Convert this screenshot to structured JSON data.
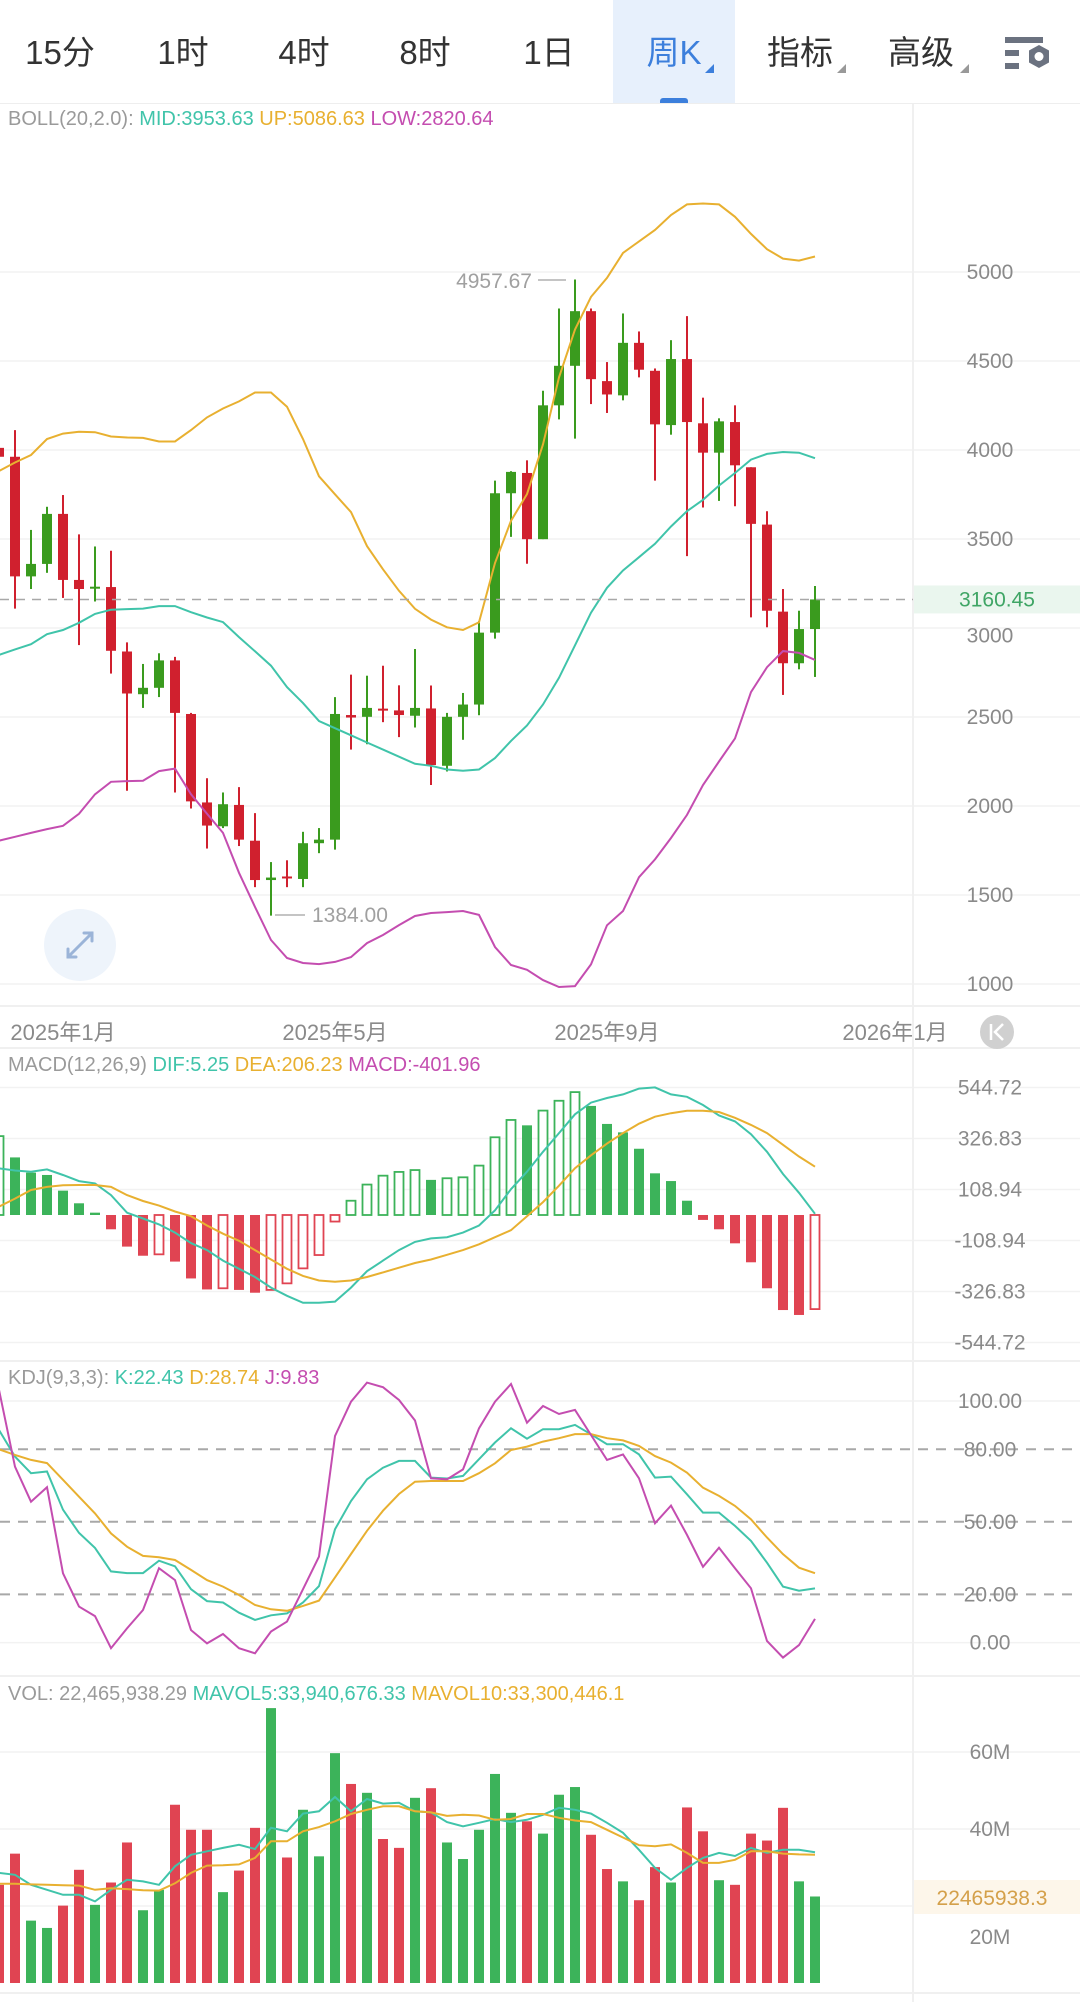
{
  "tabs": [
    {
      "label": "15分",
      "active": false,
      "dropdown": false
    },
    {
      "label": "1时",
      "active": false,
      "dropdown": false
    },
    {
      "label": "4时",
      "active": false,
      "dropdown": false
    },
    {
      "label": "8时",
      "active": false,
      "dropdown": false
    },
    {
      "label": "1日",
      "active": false,
      "dropdown": false
    },
    {
      "label": "周K",
      "active": true,
      "dropdown": true
    },
    {
      "label": "指标",
      "active": false,
      "dropdown": true
    },
    {
      "label": "高级",
      "active": false,
      "dropdown": true
    }
  ],
  "settings_icon": "chart-settings-icon",
  "colors": {
    "up": "#3a9b1e",
    "down": "#d0202e",
    "vol_up": "#3cb35a",
    "vol_down": "#e04452",
    "mid": "#40c4aa",
    "upper": "#e8b030",
    "lower": "#c44db0",
    "accent": "#3c7fdc"
  },
  "legends": {
    "boll": {
      "name": "BOLL(20,2.0):",
      "mid": "MID:3953.63",
      "up": "UP:5086.63",
      "low": "LOW:2820.64"
    },
    "macd": {
      "name": "MACD(12,26,9)",
      "dif": "DIF:5.25",
      "dea": "DEA:206.23",
      "macd": "MACD:-401.96"
    },
    "kdj": {
      "name": "KDJ(9,3,3):",
      "k": "K:22.43",
      "d": "D:28.74",
      "j": "J:9.83"
    },
    "vol": {
      "name": "VOL: 22,465,938.29",
      "ma5": "MAVOL5:33,940,676.33",
      "ma10": "MAVOL10:33,300,446.1"
    }
  },
  "price_marks": {
    "high_label": "4957.67",
    "low_label": "1384.00",
    "current_label": "3160.45",
    "current": 3160.45
  },
  "volume_tag": "22465938.3",
  "chart_data": {
    "type": "candlestick",
    "x_ticks": [
      {
        "label": "2025年1月",
        "index": 4
      },
      {
        "label": "2025年5月",
        "index": 21
      },
      {
        "label": "2025年9月",
        "index": 38
      },
      {
        "label": "2026年1月",
        "index": 56
      }
    ],
    "price_axis": {
      "ticks": [
        "5000",
        "4500",
        "4000",
        "3500",
        "3000",
        "2500",
        "2000",
        "1500",
        "1000"
      ]
    },
    "candles": [
      [
        4012,
        4080,
        3940,
        3962
      ],
      [
        3962,
        4112,
        3109,
        3290
      ],
      [
        3290,
        3551,
        3219,
        3360
      ],
      [
        3360,
        3681,
        3310,
        3641
      ],
      [
        3641,
        3747,
        3169,
        3270
      ],
      [
        3270,
        3526,
        2904,
        3219
      ],
      [
        3222,
        3458,
        3149,
        3232
      ],
      [
        3230,
        3434,
        2744,
        2872
      ],
      [
        2868,
        2919,
        2086,
        2632
      ],
      [
        2628,
        2798,
        2551,
        2664
      ],
      [
        2664,
        2858,
        2612,
        2818
      ],
      [
        2818,
        2838,
        2076,
        2523
      ],
      [
        2517,
        2523,
        1986,
        2026
      ],
      [
        2020,
        2156,
        1761,
        1890
      ],
      [
        1886,
        2076,
        1876,
        2010
      ],
      [
        2006,
        2106,
        1775,
        1811
      ],
      [
        1805,
        1960,
        1544,
        1584
      ],
      [
        1584,
        1685,
        1384,
        1598
      ],
      [
        1604,
        1695,
        1544,
        1594
      ],
      [
        1590,
        1855,
        1544,
        1791
      ],
      [
        1791,
        1876,
        1735,
        1811
      ],
      [
        1811,
        2612,
        1755,
        2517
      ],
      [
        2511,
        2738,
        2317,
        2497
      ],
      [
        2501,
        2732,
        2347,
        2551
      ],
      [
        2547,
        2788,
        2471,
        2537
      ],
      [
        2537,
        2678,
        2387,
        2511
      ],
      [
        2507,
        2882,
        2441,
        2551
      ],
      [
        2548,
        2677,
        2118,
        2230
      ],
      [
        2226,
        2523,
        2194,
        2501
      ],
      [
        2501,
        2635,
        2372,
        2570
      ],
      [
        2570,
        3039,
        2510,
        2974
      ],
      [
        2974,
        3828,
        2940,
        3757
      ],
      [
        3757,
        3881,
        3512,
        3877
      ],
      [
        3871,
        3942,
        3361,
        3499
      ],
      [
        3499,
        4333,
        3499,
        4251
      ],
      [
        4251,
        4795,
        4172,
        4473
      ],
      [
        4473,
        4957.67,
        4064,
        4780
      ],
      [
        4780,
        4795,
        4258,
        4398
      ],
      [
        4387,
        4494,
        4208,
        4312
      ],
      [
        4307,
        4767,
        4279,
        4602
      ],
      [
        4602,
        4666,
        4408,
        4451
      ],
      [
        4445,
        4458,
        3828,
        4144
      ],
      [
        4140,
        4617,
        4086,
        4511
      ],
      [
        4511,
        4752,
        3404,
        4157
      ],
      [
        4150,
        4294,
        3677,
        3985
      ],
      [
        3985,
        4178,
        3714,
        4161
      ],
      [
        4157,
        4251,
        3684,
        3914
      ],
      [
        3903,
        3903,
        3060,
        3585
      ],
      [
        3581,
        3656,
        3004,
        3097
      ],
      [
        3092,
        3219,
        2624,
        2802
      ],
      [
        2802,
        3097,
        2768,
        2994
      ],
      [
        2994,
        3236,
        2725,
        3160.45
      ]
    ],
    "boll": {
      "upper": [
        3882,
        3930,
        3972,
        4062,
        4092,
        4102,
        4100,
        4076,
        4070,
        4068,
        4048,
        4048,
        4112,
        4183,
        4233,
        4273,
        4323,
        4323,
        4243,
        4062,
        3852,
        3751,
        3651,
        3460,
        3330,
        3209,
        3108,
        3047,
        3004,
        2989,
        3032,
        3365,
        3602,
        3752,
        4032,
        4408,
        4677,
        4860,
        4967,
        5107,
        5172,
        5236,
        5320,
        5380,
        5385,
        5380,
        5310,
        5214,
        5128,
        5075,
        5064,
        5087
      ],
      "mid": [
        2849,
        2880,
        2909,
        2965,
        2989,
        3029,
        3079,
        3103,
        3106,
        3109,
        3123,
        3123,
        3089,
        3059,
        3033,
        2949,
        2869,
        2788,
        2668,
        2578,
        2477,
        2437,
        2397,
        2357,
        2317,
        2277,
        2237,
        2226,
        2205,
        2198,
        2205,
        2269,
        2366,
        2452,
        2570,
        2720,
        2903,
        3086,
        3226,
        3323,
        3398,
        3473,
        3570,
        3656,
        3720,
        3800,
        3871,
        3946,
        3978,
        3989,
        3985,
        3954
      ],
      "lower": [
        1805,
        1827,
        1849,
        1870,
        1889,
        1956,
        2066,
        2136,
        2140,
        2142,
        2196,
        2210,
        2066,
        1956,
        1849,
        1625,
        1433,
        1247,
        1146,
        1118,
        1112,
        1124,
        1151,
        1230,
        1275,
        1331,
        1382,
        1399,
        1404,
        1410,
        1388,
        1208,
        1107,
        1080,
        1022,
        983,
        988,
        1110,
        1330,
        1410,
        1600,
        1700,
        1820,
        1950,
        2118,
        2250,
        2380,
        2640,
        2780,
        2870,
        2860,
        2821
      ]
    },
    "macd": {
      "axis_ticks": [
        "544.72",
        "326.83",
        "108.94",
        "-108.94",
        "-326.83",
        "-544.72"
      ],
      "hist": [
        337,
        246,
        181,
        171,
        104,
        50,
        10,
        -61,
        -135,
        -174,
        -168,
        -199,
        -271,
        -318,
        -313,
        -320,
        -332,
        -320,
        -292,
        -228,
        -171,
        -28,
        61,
        130,
        168,
        184,
        192,
        150,
        157,
        161,
        211,
        332,
        406,
        383,
        446,
        488,
        525,
        466,
        389,
        353,
        283,
        178,
        145,
        61,
        -21,
        -61,
        -121,
        -202,
        -313,
        -406,
        -427,
        -401.96
      ],
      "hollow": [
        1,
        0,
        0,
        0,
        0,
        0,
        0,
        0,
        0,
        0,
        1,
        0,
        0,
        0,
        1,
        0,
        0,
        1,
        1,
        1,
        1,
        1,
        1,
        1,
        1,
        1,
        1,
        0,
        1,
        1,
        1,
        1,
        1,
        0,
        1,
        1,
        1,
        0,
        0,
        0,
        0,
        0,
        0,
        0,
        0,
        0,
        0,
        0,
        0,
        0,
        0,
        1
      ],
      "dif": [
        199,
        190,
        185,
        195,
        171,
        145,
        135,
        85,
        10,
        -15,
        -40,
        -75,
        -120,
        -150,
        -195,
        -230,
        -265,
        -310,
        -345,
        -375,
        -375,
        -370,
        -310,
        -240,
        -195,
        -150,
        -115,
        -100,
        -95,
        -75,
        -45,
        20,
        110,
        185,
        270,
        350,
        430,
        480,
        500,
        515,
        540,
        545,
        515,
        505,
        470,
        425,
        400,
        345,
        270,
        175,
        95,
        5.25
      ],
      "dea": [
        36,
        70,
        107,
        120,
        127,
        128,
        128,
        120,
        85,
        60,
        40,
        15,
        -5,
        -45,
        -80,
        -110,
        -150,
        -190,
        -230,
        -260,
        -280,
        -285,
        -280,
        -265,
        -245,
        -225,
        -205,
        -190,
        -170,
        -150,
        -125,
        -95,
        -65,
        -5,
        55,
        125,
        200,
        255,
        305,
        350,
        390,
        420,
        435,
        445,
        445,
        440,
        415,
        385,
        350,
        300,
        250,
        206.23
      ]
    },
    "kdj": {
      "axis_ticks": [
        "100.00",
        "80.00",
        "50.00",
        "20.00",
        "0.00"
      ],
      "k": [
        88,
        77,
        70.1,
        70.8,
        55,
        45.4,
        39.2,
        29.5,
        28.8,
        28.8,
        33.9,
        31.6,
        22.1,
        17.2,
        16.6,
        12.4,
        9.4,
        11.3,
        12.1,
        16.6,
        23.4,
        46.9,
        58.6,
        67.6,
        72.4,
        75.2,
        75.2,
        68.3,
        67.9,
        69,
        75.9,
        82.8,
        88.7,
        84.4,
        88.3,
        88.3,
        90.1,
        86.2,
        82.1,
        82.1,
        77.9,
        68.3,
        68.7,
        61.4,
        53.8,
        53.8,
        48.3,
        42.1,
        33.1,
        23.2,
        21.5,
        22.43
      ],
      "d": [
        80,
        77.7,
        75.6,
        74.3,
        67.4,
        60.4,
        53.5,
        45.2,
        39.7,
        35.9,
        35.3,
        34.2,
        30.1,
        25.9,
        23.2,
        19.7,
        15.6,
        13.8,
        13.2,
        15.2,
        17.4,
        27,
        36.7,
        46.3,
        54.6,
        61.5,
        66.6,
        66.9,
        66.9,
        66.9,
        70.1,
        74.2,
        79.7,
        81.1,
        83.2,
        84.6,
        86.3,
        86.3,
        84.6,
        83.7,
        81.4,
        77.2,
        74.5,
        70.3,
        64.1,
        60.7,
        56.6,
        51,
        43.5,
        36.6,
        31,
        28.74
      ],
      "j": [
        104.6,
        72.8,
        58.3,
        64.3,
        28.7,
        14.9,
        11,
        -2.3,
        5.9,
        13.5,
        30.8,
        25.9,
        5.2,
        -0.3,
        3.6,
        -2.3,
        -4.4,
        4.6,
        8.7,
        22.1,
        35.6,
        85.5,
        99.7,
        107.6,
        105.7,
        100.4,
        91.9,
        68,
        67.6,
        71.7,
        88.7,
        99.7,
        107,
        91,
        97.9,
        94.6,
        96.3,
        85.9,
        75.6,
        77.9,
        68,
        49.4,
        56.7,
        44.6,
        31.4,
        39.3,
        30.8,
        22.5,
        0.7,
        -6.2,
        -1,
        9.83
      ]
    },
    "volume": {
      "unit": "M",
      "axis_ticks": [
        "60M",
        "40M",
        "20M"
      ],
      "values": [
        25.5,
        33.6,
        16.2,
        14.3,
        20.1,
        29.4,
        20.3,
        26.1,
        36.5,
        18.9,
        24.2,
        46.3,
        39.8,
        39.8,
        23.6,
        29.2,
        40.3,
        71.4,
        32.6,
        45,
        32.9,
        59.7,
        51.7,
        49.4,
        37.4,
        35.1,
        48.1,
        50.6,
        36.5,
        32.2,
        39.8,
        54.3,
        44.2,
        42,
        38.8,
        48.9,
        50.9,
        38.5,
        29.6,
        26.4,
        21.5,
        30.1,
        26.1,
        45.6,
        39.4,
        26.7,
        25.5,
        38.8,
        37,
        45.5,
        26.4,
        22.47
      ],
      "mavol5": [
        28.6,
        28.1,
        25.5,
        24.2,
        22.9,
        22.9,
        21.2,
        24.2,
        26.8,
        26.4,
        25.5,
        30.3,
        33.3,
        34.2,
        35.1,
        35.9,
        34.8,
        40.3,
        39.4,
        44,
        44.6,
        48.3,
        44.6,
        47.8,
        46.6,
        46.8,
        44.6,
        44.3,
        41.8,
        40.7,
        41.6,
        42.6,
        41.8,
        42.4,
        43.7,
        45.5,
        45,
        44,
        41.6,
        39,
        34.6,
        29.9,
        26.8,
        29.9,
        32.5,
        33.8,
        33,
        35.1,
        33.8,
        34.6,
        34.6,
        33.94
      ],
      "mavol10": [
        25.8,
        25.8,
        25.6,
        25.5,
        25.4,
        25.3,
        24.2,
        24.6,
        24.4,
        24.1,
        24,
        25.9,
        28.6,
        30.5,
        30.6,
        30.8,
        32.5,
        36.8,
        36.8,
        39.4,
        40.5,
        42,
        43.9,
        45,
        45.9,
        45.9,
        44.6,
        44.3,
        43.4,
        43.7,
        43.5,
        42.4,
        42.6,
        43.9,
        43.9,
        42.9,
        42.2,
        41.8,
        39.8,
        37.8,
        35.8,
        35.5,
        36,
        33.8,
        31.2,
        31.2,
        32,
        34.2,
        34.2,
        33.6,
        33.4,
        33.3
      ]
    }
  }
}
